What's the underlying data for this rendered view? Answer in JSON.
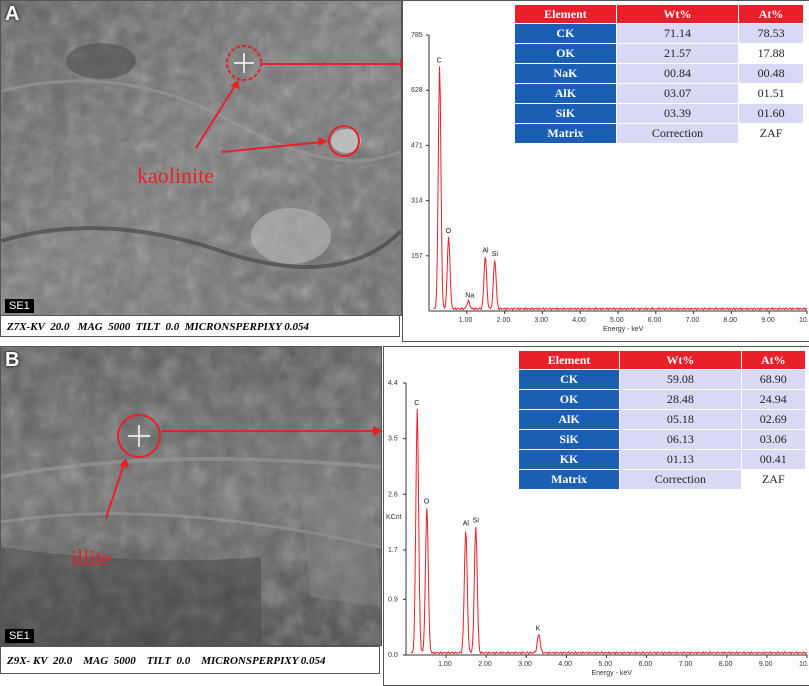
{
  "panel_a": {
    "label": "A",
    "sem_badge": "SE1",
    "caption": "Z7X-KV  20.0   MAG  5000  TILT  0.0  MICRONSPERPIXY 0.054",
    "mineral": "kaolinite",
    "table": {
      "headers": [
        "Element",
        "Wt%",
        "At%"
      ],
      "rows": [
        {
          "element": "CK",
          "wt": "71.14",
          "at": "78.53"
        },
        {
          "element": "OK",
          "wt": "21.57",
          "at": "17.88"
        },
        {
          "element": "NaK",
          "wt": "00.84",
          "at": "00.48"
        },
        {
          "element": "AlK",
          "wt": "03.07",
          "at": "01.51"
        },
        {
          "element": "SiK",
          "wt": "03.39",
          "at": "01.60"
        },
        {
          "element": "Matrix",
          "wt": "Correction",
          "at": "ZAF"
        }
      ]
    }
  },
  "panel_b": {
    "label": "B",
    "sem_badge": "SE1",
    "caption": "Z9X- KV  20.0    MAG  5000    TILT  0.0    MICRONSPERPIXY 0.054",
    "mineral": "illite",
    "table": {
      "headers": [
        "Element",
        "Wt%",
        "At%"
      ],
      "rows": [
        {
          "element": "CK",
          "wt": "59.08",
          "at": "68.90"
        },
        {
          "element": "OK",
          "wt": "28.48",
          "at": "24.94"
        },
        {
          "element": "AlK",
          "wt": "05.18",
          "at": "02.69"
        },
        {
          "element": "SiK",
          "wt": "06.13",
          "at": "03.06"
        },
        {
          "element": "KK",
          "wt": "01.13",
          "at": "00.41"
        },
        {
          "element": "Matrix",
          "wt": "Correction",
          "at": "ZAF"
        }
      ]
    }
  },
  "colors": {
    "accent_red": "#e8202a",
    "table_blue": "#1a5fb4",
    "table_lavender": "#d9d9f5",
    "spectrum_line": "#e8202a"
  },
  "chart_data": [
    {
      "type": "line",
      "xlabel": "Energy - keV",
      "ylabel": "",
      "xlim": [
        0,
        10
      ],
      "ylim": [
        0,
        785
      ],
      "x_ticks": [
        "1.00",
        "2.00",
        "3.00",
        "4.00",
        "5.00",
        "6.00",
        "7.00",
        "8.00",
        "9.00",
        "10.0"
      ],
      "y_ticks": [
        "157",
        "314",
        "471",
        "628",
        "785"
      ],
      "peaks": [
        {
          "label": "C",
          "x": 0.28,
          "y": 690
        },
        {
          "label": "O",
          "x": 0.52,
          "y": 205
        },
        {
          "label": "Na",
          "x": 1.04,
          "y": 22
        },
        {
          "label": "Al",
          "x": 1.49,
          "y": 150
        },
        {
          "label": "Si",
          "x": 1.74,
          "y": 140
        }
      ]
    },
    {
      "type": "line",
      "xlabel": "Energy - keV",
      "ylabel": "KCnt",
      "xlim": [
        0,
        10
      ],
      "ylim": [
        0,
        4.4
      ],
      "x_ticks": [
        "1.00",
        "2.00",
        "3.00",
        "4.00",
        "5.00",
        "6.00",
        "7.00",
        "8.00",
        "9.00",
        "10.0"
      ],
      "y_ticks": [
        "0.0",
        "0.9",
        "1.7",
        "2.6",
        "3.5",
        "4.4"
      ],
      "peaks": [
        {
          "label": "C",
          "x": 0.28,
          "y": 3.95
        },
        {
          "label": "O",
          "x": 0.52,
          "y": 2.35
        },
        {
          "label": "Al",
          "x": 1.49,
          "y": 2.0
        },
        {
          "label": "Si",
          "x": 1.74,
          "y": 2.05
        },
        {
          "label": "K",
          "x": 3.31,
          "y": 0.3
        }
      ]
    }
  ]
}
